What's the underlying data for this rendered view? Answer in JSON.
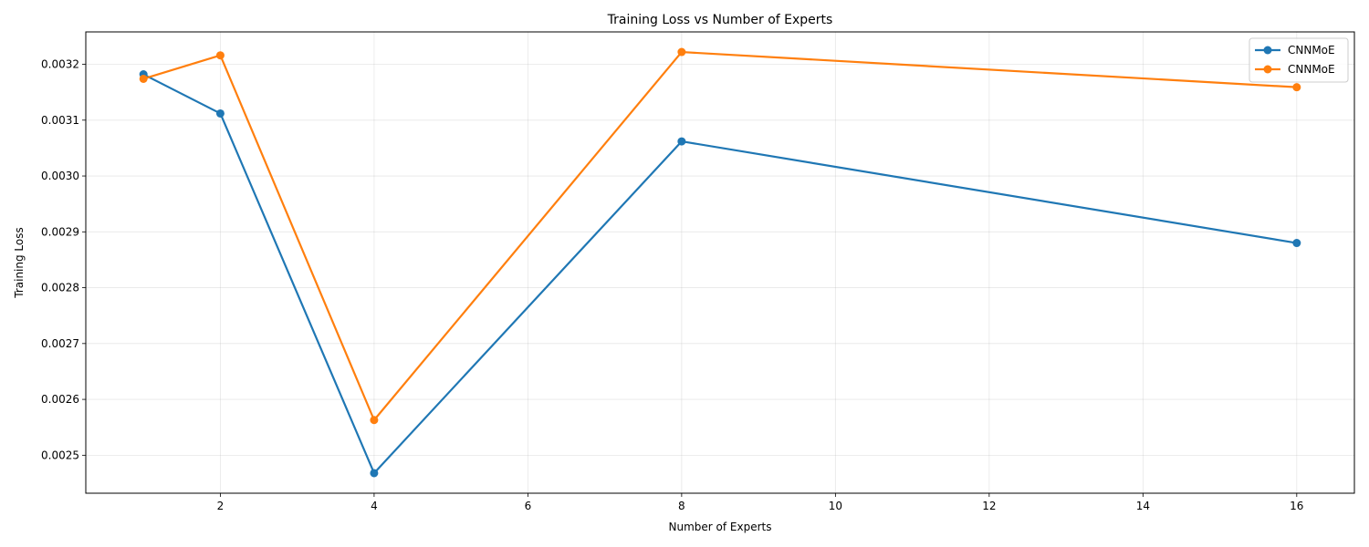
{
  "chart_data": {
    "type": "line",
    "title": "Training Loss vs Number of Experts",
    "xlabel": "Number of Experts",
    "ylabel": "Training Loss",
    "x": [
      1,
      2,
      4,
      8,
      16
    ],
    "series": [
      {
        "name": "CNNMoE",
        "color": "#1f77b4",
        "values": [
          0.003182,
          0.003112,
          0.002468,
          0.003062,
          0.00288
        ]
      },
      {
        "name": "CNNMoE",
        "color": "#ff7f0e",
        "values": [
          0.003174,
          0.003216,
          0.002563,
          0.003222,
          0.003159
        ]
      }
    ],
    "xlim": [
      0.25,
      16.75
    ],
    "ylim": [
      0.002432,
      0.003258
    ],
    "xticks": [
      2,
      4,
      6,
      8,
      10,
      12,
      14,
      16
    ],
    "xtick_labels": [
      "2",
      "4",
      "6",
      "8",
      "10",
      "12",
      "14",
      "16"
    ],
    "yticks": [
      0.0025,
      0.0026,
      0.0027,
      0.0028,
      0.0029,
      0.003,
      0.0031,
      0.0032
    ],
    "ytick_labels": [
      "0.0025",
      "0.0026",
      "0.0027",
      "0.0028",
      "0.0029",
      "0.0030",
      "0.0031",
      "0.0032"
    ],
    "grid": true,
    "legend_position": "top-right"
  }
}
